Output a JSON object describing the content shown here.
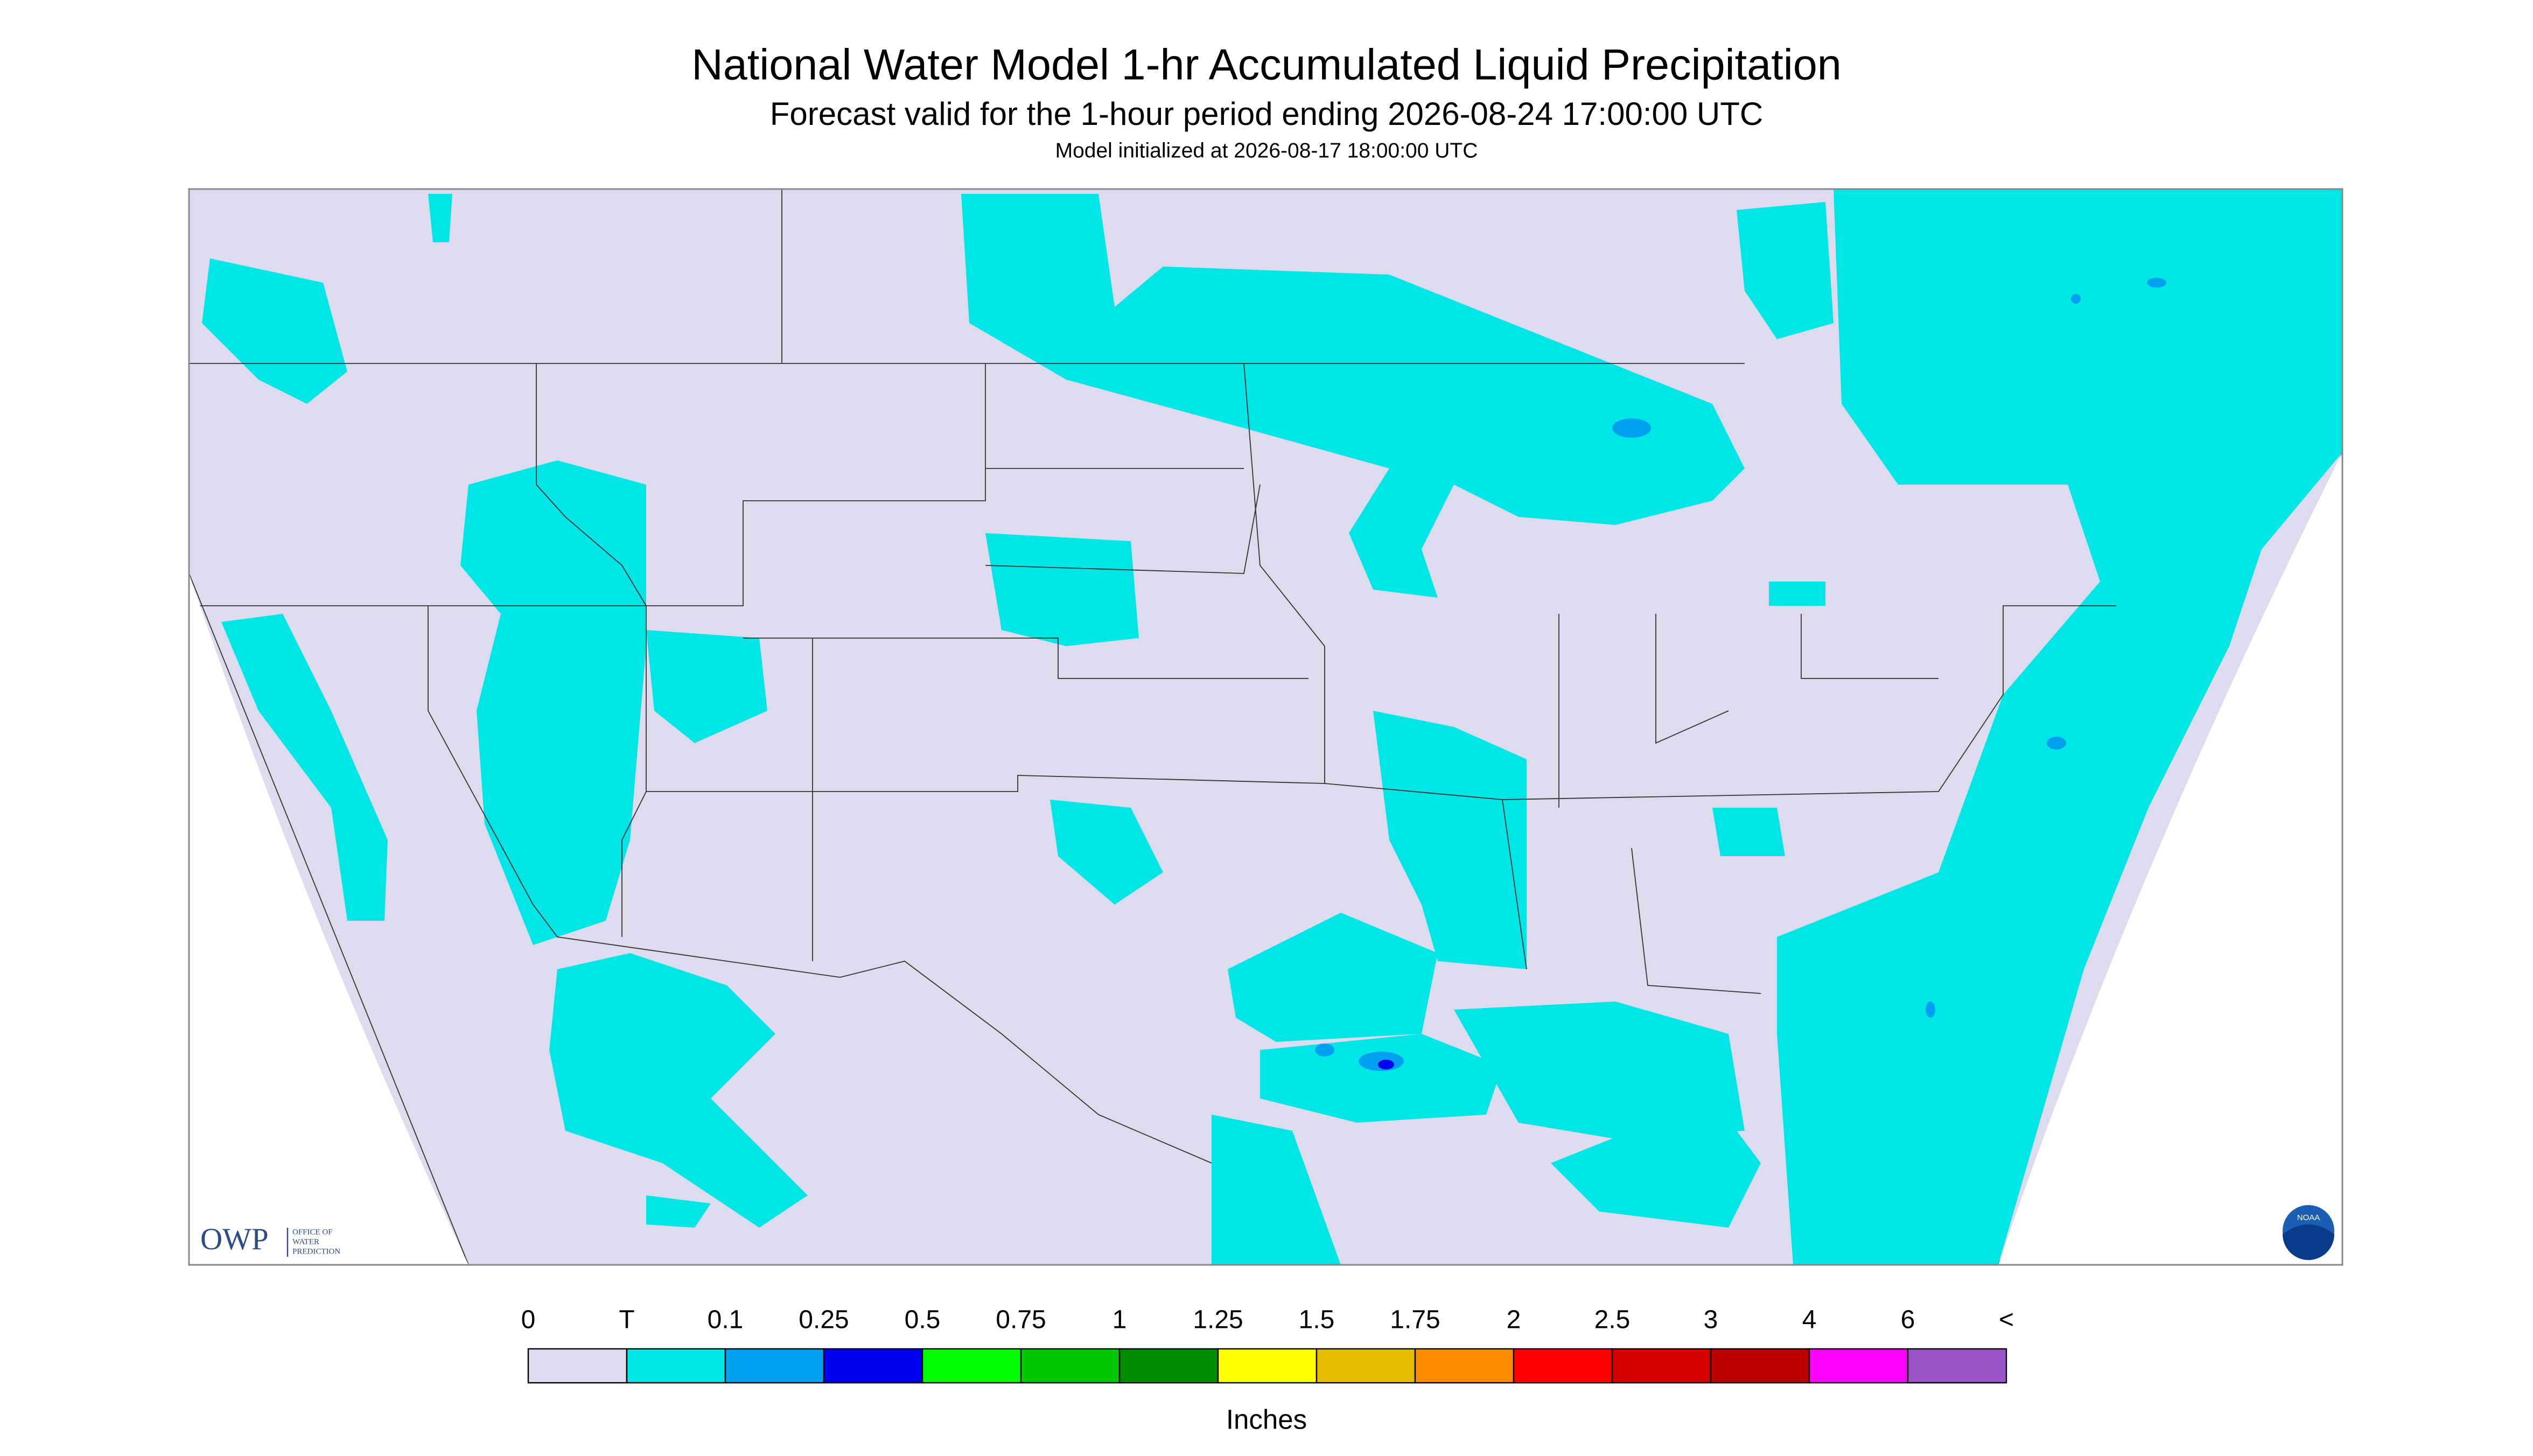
{
  "header": {
    "title": "National Water Model 1-hr Accumulated Liquid Precipitation",
    "subtitle": "Forecast valid for the 1-hour period ending 2026-08-24 17:00:00 UTC",
    "init": "Model initialized at 2026-08-17 18:00:00 UTC"
  },
  "logos": {
    "owp": "OWP",
    "owp_lines": [
      "OFFICE OF",
      "WATER",
      "PREDICTION"
    ],
    "noaa": "NOAA"
  },
  "legend": {
    "labels": [
      "0",
      "T",
      "0.1",
      "0.25",
      "0.5",
      "0.75",
      "1",
      "1.25",
      "1.5",
      "1.75",
      "2",
      "2.5",
      "3",
      "4",
      "6",
      "<"
    ],
    "colors": [
      "#dcdcee",
      "#00e6e6",
      "#00a0f0",
      "#0000f0",
      "#00ff00",
      "#00c800",
      "#008c00",
      "#ffff00",
      "#e6be00",
      "#ff8c00",
      "#ff0000",
      "#d70000",
      "#bb0000",
      "#ff00ff",
      "#9955c8"
    ],
    "unit": "Inches"
  }
}
